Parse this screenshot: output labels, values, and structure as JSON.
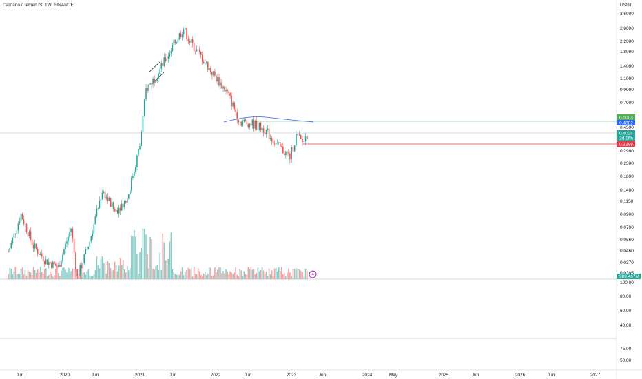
{
  "header": {
    "title": "Cardano / TetherUS, 1W, BINANCE"
  },
  "price_axis": {
    "currency": "USDT",
    "labels": [
      "3.6000",
      "2.8000",
      "2.2000",
      "1.8000",
      "1.4000",
      "1.1000",
      "0.9000",
      "0.7000",
      "0.4500",
      "0.2900",
      "0.2300",
      "0.1800",
      "0.1400",
      "0.1150",
      "0.0900",
      "0.0700",
      "0.0560",
      "0.0460",
      "0.0370",
      "0.0305"
    ]
  },
  "indicator_axis_1": {
    "labels": [
      "100.00",
      "80.00",
      "60.00",
      "40.00"
    ]
  },
  "indicator_axis_2": {
    "labels": [
      "75.00",
      "50.00"
    ]
  },
  "time_axis": {
    "labels": [
      "Jun",
      "2020",
      "Jun",
      "2021",
      "Jun",
      "2022",
      "Jun",
      "2023",
      "Jun",
      "2024",
      "May",
      "2025",
      "Jun",
      "2026",
      "Jun",
      "2027"
    ]
  },
  "price_tags": [
    {
      "value": "0.5003",
      "color": "#4caf50"
    },
    {
      "value": "0.4882",
      "color": "#2962ff"
    },
    {
      "value": "0.4024",
      "color": "#26a69a"
    },
    {
      "value": "2d 16h",
      "color": "#26a69a"
    },
    {
      "value": "0.3298",
      "color": "#f23645"
    }
  ],
  "volume_tag": {
    "value": "389.467M",
    "color": "#26a69a"
  },
  "colors": {
    "up": "#26a69a",
    "down": "#ef5350",
    "ma": "#2962ff",
    "green_line": "#4caf50",
    "red_line": "#f23645",
    "grid": "#e0e3eb"
  },
  "icons": {
    "flash": "lightning-icon"
  },
  "chart_data": {
    "type": "candlestick",
    "timeframe": "1W",
    "y_scale": "log",
    "horizontal_levels": [
      0.5003,
      0.4882,
      0.4024,
      0.3298
    ],
    "series": [
      {
        "name": "",
        "points": [
          [
            "2019-04",
            0.045
          ],
          [
            "2019-06",
            0.09
          ],
          [
            "2019-08",
            0.05
          ],
          [
            "2019-10",
            0.038
          ],
          [
            "2019-12",
            0.034
          ],
          [
            "2020-02",
            0.07
          ],
          [
            "2020-03",
            0.028
          ],
          [
            "2020-05",
            0.055
          ],
          [
            "2020-07",
            0.14
          ],
          [
            "2020-09",
            0.095
          ],
          [
            "2020-11",
            0.12
          ],
          [
            "2021-01",
            0.32
          ],
          [
            "2021-02",
            0.9
          ],
          [
            "2021-04",
            1.25
          ],
          [
            "2021-06",
            1.9
          ],
          [
            "2021-08",
            2.8
          ],
          [
            "2021-09",
            2.2
          ],
          [
            "2021-11",
            1.6
          ],
          [
            "2022-01",
            1.15
          ],
          [
            "2022-03",
            0.85
          ],
          [
            "2022-05",
            0.5
          ],
          [
            "2022-07",
            0.48
          ],
          [
            "2022-09",
            0.43
          ],
          [
            "2022-11",
            0.32
          ],
          [
            "2023-01",
            0.26
          ],
          [
            "2023-02",
            0.38
          ],
          [
            "2023-03",
            0.34
          ],
          [
            "2023-04",
            0.41
          ]
        ]
      }
    ]
  }
}
